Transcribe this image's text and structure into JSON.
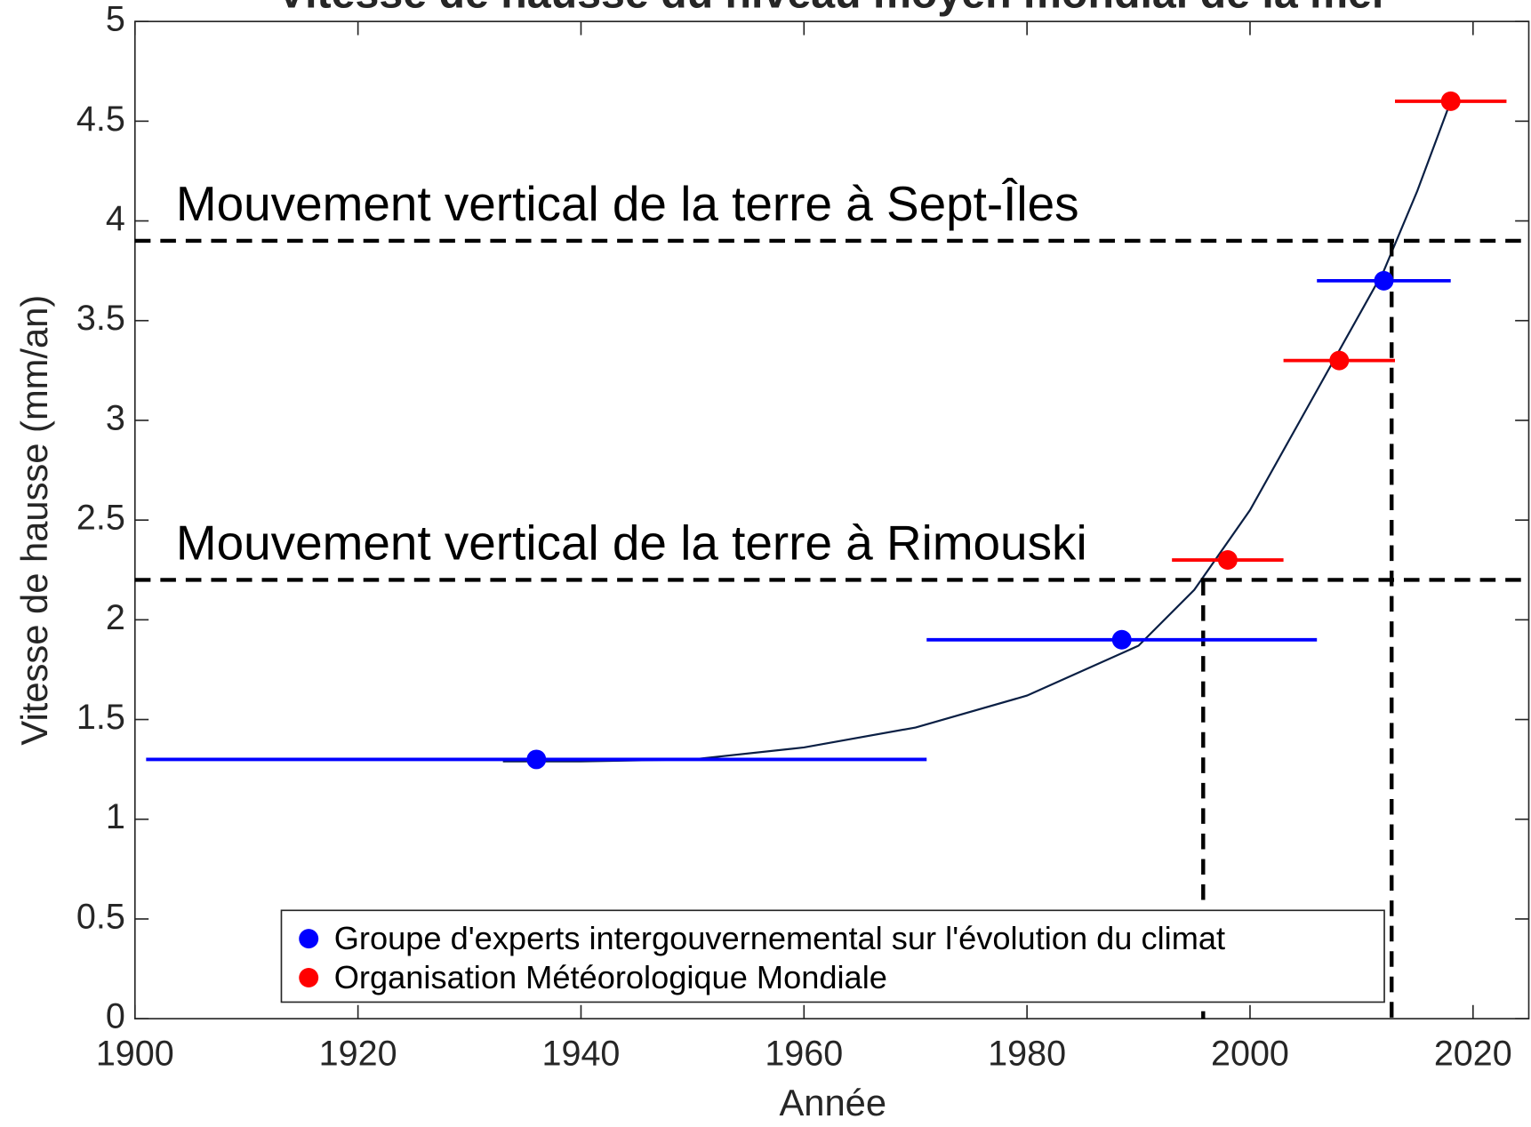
{
  "chart_data": {
    "type": "scatter",
    "title": "Vitesse de hausse du niveau moyen mondial de la mer",
    "xlabel": "Année",
    "ylabel": "Vitesse de hausse (mm/an)",
    "xlim": [
      1900,
      2025
    ],
    "ylim": [
      0,
      5
    ],
    "xticks": [
      1900,
      1920,
      1940,
      1960,
      1980,
      2000,
      2020
    ],
    "yticks": [
      0,
      0.5,
      1,
      1.5,
      2,
      2.5,
      3,
      3.5,
      4,
      4.5,
      5
    ],
    "grid": false,
    "legend": "lower center",
    "series": [
      {
        "name": "Groupe d'experts intergouvernemental sur l'évolution du climat",
        "color": "#0000ff",
        "x": [
          1936,
          1988.5,
          2012
        ],
        "values": [
          1.3,
          1.9,
          3.7
        ],
        "x_low": [
          1901,
          1971,
          2006
        ],
        "x_high": [
          1971,
          2006,
          2018
        ]
      },
      {
        "name": "Organisation Météorologique Mondiale",
        "color": "#ff0000",
        "x": [
          1998,
          2008,
          2018
        ],
        "values": [
          2.3,
          3.3,
          4.6
        ],
        "x_low": [
          1993,
          2003,
          2013
        ],
        "x_high": [
          2003,
          2013,
          2023
        ]
      }
    ],
    "fit": {
      "color": "#0a1f44",
      "x": [
        1933,
        1940,
        1950,
        1960,
        1970,
        1980,
        1990,
        1995,
        2000,
        2005,
        2010,
        2012,
        2015,
        2018
      ],
      "values": [
        1.29,
        1.29,
        1.3,
        1.36,
        1.46,
        1.62,
        1.87,
        2.15,
        2.55,
        3.05,
        3.55,
        3.75,
        4.15,
        4.6
      ]
    },
    "reference_lines": [
      {
        "label": "Mouvement vertical de la terre à Sept-Îles",
        "y": 3.9,
        "x": 2012.7
      },
      {
        "label": "Mouvement vertical de la terre à Rimouski",
        "y": 2.2,
        "x": 1995.8
      }
    ]
  }
}
